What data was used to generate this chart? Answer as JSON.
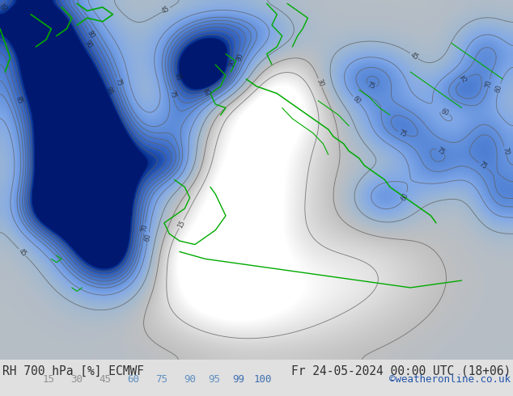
{
  "title_left": "RH 700 hPa [%] ECMWF",
  "title_right": "Fr 24-05-2024 00:00 UTC (18+06)",
  "credit": "©weatheronline.co.uk",
  "colorbar_values": [
    15,
    30,
    45,
    60,
    75,
    90,
    95,
    99,
    100
  ],
  "colorbar_colors": [
    "#d8d8d8",
    "#b8b8b8",
    "#c8d8e8",
    "#90b8e0",
    "#6898d0",
    "#4070b8",
    "#2050a0",
    "#103080",
    "#001860"
  ],
  "colorbar_label_colors": [
    "#909090",
    "#909090",
    "#909090",
    "#6090c0",
    "#6090c0",
    "#6090c0",
    "#6090c0",
    "#4070b0",
    "#4070b0"
  ],
  "bg_color": "#e0e0e0",
  "bottom_bar_color": "#e8e8e8",
  "label_color_left": "#303030",
  "label_color_right": "#303030",
  "credit_color": "#2255aa",
  "font_size_title": 10.5,
  "font_size_labels": 9,
  "font_size_credit": 9,
  "figsize": [
    6.34,
    4.9
  ],
  "dpi": 100,
  "rh_colors": [
    [
      0.0,
      "#ffffff"
    ],
    [
      0.15,
      "#e0e0e0"
    ],
    [
      0.3,
      "#c0c0c0"
    ],
    [
      0.45,
      "#a0b8d0"
    ],
    [
      0.6,
      "#80a8e8"
    ],
    [
      0.75,
      "#5888d8"
    ],
    [
      0.9,
      "#3060c0"
    ],
    [
      0.95,
      "#1848a8"
    ],
    [
      0.99,
      "#083090"
    ],
    [
      1.0,
      "#001870"
    ]
  ],
  "green_color": "#00aa00",
  "contour_color": "#606060",
  "number_color": "#202020"
}
